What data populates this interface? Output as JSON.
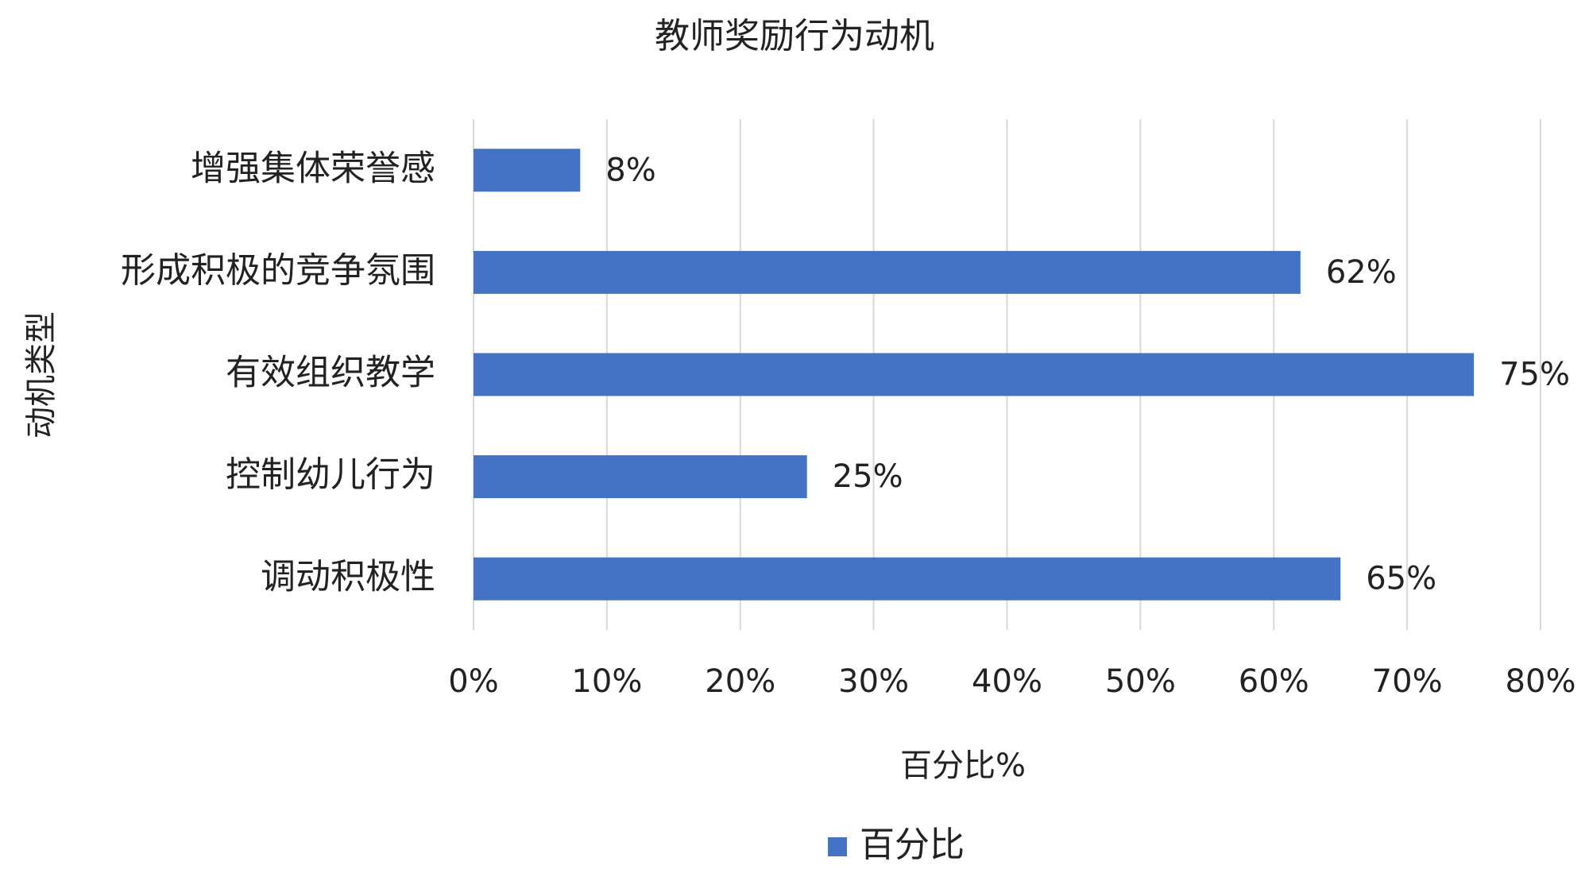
{
  "chart_data": {
    "type": "hbar",
    "title": "教师奖励行为动机",
    "categories": [
      "增强集体荣誉感",
      "形成积极的竞争氛围",
      "有效组织教学",
      "控制幼儿行为",
      "调动积极性"
    ],
    "series": [
      {
        "name": "百分比",
        "color": "#4472c4",
        "values": [
          8,
          62,
          75,
          25,
          65
        ],
        "value_labels": [
          "8%",
          "62%",
          "75%",
          "25%",
          "65%"
        ]
      }
    ],
    "x_label": "百分比%",
    "y_label": "动机类型",
    "xlim": [
      0,
      80
    ],
    "xticks": [
      {
        "value": 0,
        "label": "0%"
      },
      {
        "value": 10,
        "label": "10%"
      },
      {
        "value": 20,
        "label": "20%"
      },
      {
        "value": 30,
        "label": "30%"
      },
      {
        "value": 40,
        "label": "40%"
      },
      {
        "value": 50,
        "label": "50%"
      },
      {
        "value": 60,
        "label": "60%"
      },
      {
        "value": 70,
        "label": "70%"
      },
      {
        "value": 80,
        "label": "80%"
      }
    ],
    "grid": true,
    "legend": "bottom"
  }
}
